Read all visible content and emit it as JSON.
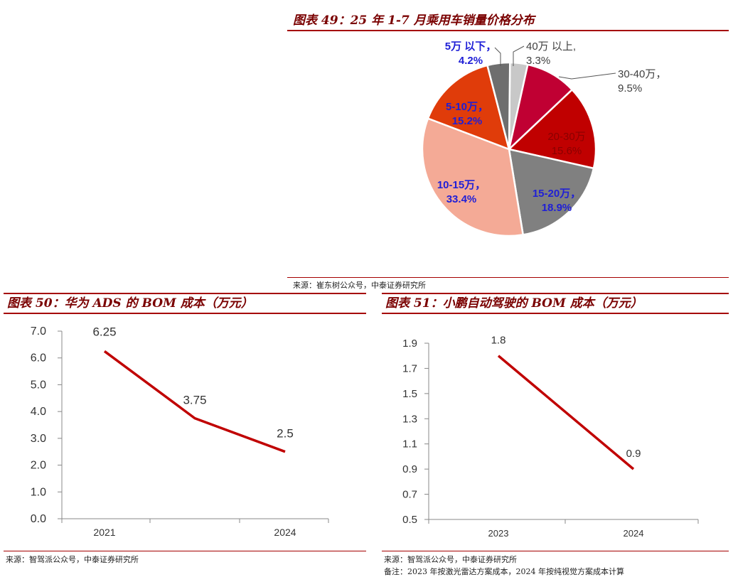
{
  "top_cutoff_text": "",
  "sections": {
    "chart49": {
      "title": "图表 49：25 年 1-7 月乘用车销量价格分布",
      "source": "来源：崔东树公众号，中泰证券研究所"
    },
    "chart50": {
      "title": "图表 50：华为 ADS 的 BOM 成本（万元）",
      "source": "来源：智驾派公众号，中泰证券研究所"
    },
    "chart51": {
      "title": "图表 51：小鹏自动驾驶的 BOM 成本（万元）",
      "source": "来源：智驾派公众号，中泰证券研究所",
      "note": "备注：2023 年按激光雷达方案成本，2024 年按纯视觉方案成本计算"
    }
  },
  "colors": {
    "accent": "#a50000",
    "line": "#c00000",
    "label_blue": "#1f1fd6"
  },
  "chart_data": [
    {
      "type": "pie",
      "title": "25 年 1-7 月乘用车销量价格分布",
      "slices": [
        {
          "name": "40万以上",
          "value": 3.3,
          "label_name": "40万 以上,",
          "label_value": "3.3%",
          "color": "#c8c8c8",
          "label_color": "#404040"
        },
        {
          "name": "30-40万",
          "value": 9.5,
          "label_name": "30-40万，",
          "label_value": "9.5%",
          "color": "#c00033",
          "label_color": "#404040"
        },
        {
          "name": "20-30万",
          "value": 15.6,
          "label_name": "20-30万",
          "label_value": "15.6%",
          "color": "#c00000",
          "label_color": "#8a0000"
        },
        {
          "name": "15-20万",
          "value": 18.9,
          "label_name": "15-20万，",
          "label_value": "18.9%",
          "color": "#808080",
          "label_color": "#1f1fd6"
        },
        {
          "name": "10-15万",
          "value": 33.4,
          "label_name": "10-15万，",
          "label_value": "33.4%",
          "color": "#f4aa96",
          "label_color": "#1f1fd6"
        },
        {
          "name": "5-10万",
          "value": 15.2,
          "label_name": "5-10万，",
          "label_value": "15.2%",
          "color": "#e03c0a",
          "label_color": "#1f1fd6"
        },
        {
          "name": "5万以下",
          "value": 4.2,
          "label_name": "5万 以下，",
          "label_value": "4.2%",
          "color": "#6e6e6e",
          "label_color": "#1f1fd6"
        }
      ]
    },
    {
      "type": "line",
      "title": "华为 ADS 的 BOM 成本（万元）",
      "x_ticks": [
        "2021",
        "2024"
      ],
      "x": [
        "2021",
        "",
        "2024"
      ],
      "values": [
        6.25,
        3.75,
        2.5
      ],
      "data_labels": [
        "6.25",
        "3.75",
        "2.5"
      ],
      "ylim": [
        0,
        7
      ],
      "y_ticks": [
        "0.0",
        "1.0",
        "2.0",
        "3.0",
        "4.0",
        "5.0",
        "6.0",
        "7.0"
      ]
    },
    {
      "type": "line",
      "title": "小鹏自动驾驶的 BOM 成本（万元）",
      "x": [
        "2023",
        "2024"
      ],
      "values": [
        1.8,
        0.9
      ],
      "data_labels": [
        "1.8",
        "0.9"
      ],
      "ylim": [
        0.5,
        1.9
      ],
      "y_ticks": [
        "0.5",
        "0.7",
        "0.9",
        "1.1",
        "1.3",
        "1.5",
        "1.7",
        "1.9"
      ]
    }
  ]
}
